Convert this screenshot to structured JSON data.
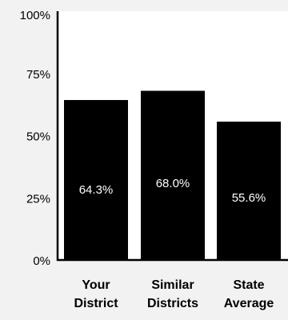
{
  "chart_data": {
    "type": "bar",
    "categories": [
      "Your District",
      "Similar Districts",
      "State Average"
    ],
    "category_lines": [
      [
        "Your",
        "District"
      ],
      [
        "Similar",
        "Districts"
      ],
      [
        "State",
        "Average"
      ]
    ],
    "values": [
      64.3,
      68.0,
      55.6
    ],
    "data_labels": [
      "64.3%",
      "68.0%",
      "55.6%"
    ],
    "ylim": [
      0,
      100
    ],
    "y_ticks": [
      0,
      25,
      50,
      75,
      100
    ],
    "y_tick_labels": [
      "0%",
      "25%",
      "50%",
      "75%",
      "100%"
    ],
    "grid": false,
    "colors": {
      "bar": "#000000",
      "plot_background": "#ffffff",
      "page_background": "#f2f2f2",
      "axis": "#000000",
      "label_inside": "#ffffff",
      "text": "#000000"
    }
  }
}
